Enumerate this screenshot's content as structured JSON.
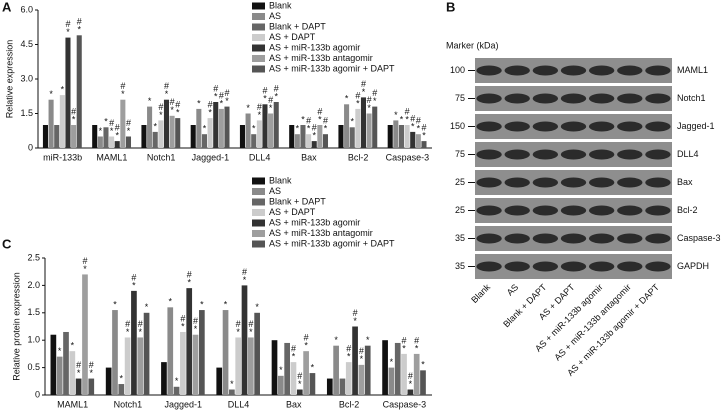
{
  "chart_data": [
    {
      "type": "bar",
      "panel_label": "A",
      "y_label": "Relative expression",
      "categories": [
        "miR-133b",
        "MAML1",
        "Notch1",
        "Jagged-1",
        "DLL4",
        "Bax",
        "Bcl-2",
        "Caspase-3"
      ],
      "ylim": [
        0,
        6
      ],
      "yticks": [
        0,
        1.5,
        {
          "value": 3,
          "label": "3.0"
        },
        4.5,
        {
          "value": 6,
          "label": "6.0"
        }
      ],
      "series": [
        {
          "name": "Blank",
          "color": "#111111",
          "values": [
            1.0,
            1.0,
            1.0,
            1.0,
            1.0,
            1.0,
            1.0,
            1.0
          ],
          "sig": [
            null,
            null,
            null,
            null,
            null,
            null,
            null,
            null
          ]
        },
        {
          "name": "AS",
          "color": "#8a8a8a",
          "values": [
            2.1,
            0.5,
            1.8,
            1.7,
            1.5,
            0.6,
            1.9,
            1.2
          ],
          "sig": [
            [
              "*"
            ],
            [
              "*"
            ],
            [
              "*"
            ],
            [
              "*"
            ],
            [
              "*"
            ],
            [
              "*"
            ],
            [
              "*"
            ],
            [
              "*"
            ]
          ]
        },
        {
          "name": "Blank + DAPT",
          "color": "#666666",
          "values": [
            1.0,
            0.9,
            0.7,
            0.6,
            0.6,
            1.0,
            0.9,
            1.0
          ],
          "sig": [
            null,
            [
              "*"
            ],
            [
              "*"
            ],
            [
              "*"
            ],
            [
              "*"
            ],
            [
              "*"
            ],
            [
              "*"
            ],
            [
              "*"
            ]
          ]
        },
        {
          "name": "AS + DAPT",
          "color": "#cccccc",
          "values": [
            2.3,
            0.5,
            1.2,
            1.3,
            1.2,
            0.6,
            1.7,
            1.0
          ],
          "sig": [
            [
              "*"
            ],
            [
              "#",
              "*"
            ],
            [
              "#",
              "*"
            ],
            [
              "#",
              "*"
            ],
            [
              "#",
              "*"
            ],
            [
              "#",
              "*"
            ],
            [
              "#",
              "*"
            ],
            [
              "#",
              "*"
            ]
          ]
        },
        {
          "name": "AS + miR-133b agomir",
          "color": "#333333",
          "values": [
            4.8,
            0.3,
            2.1,
            2.0,
            1.9,
            0.3,
            2.2,
            0.7
          ],
          "sig": [
            [
              "#",
              "*"
            ],
            [
              "#",
              "*"
            ],
            [
              "#",
              "*"
            ],
            [
              "#",
              "*"
            ],
            [
              "#",
              "*"
            ],
            [
              "#",
              "*"
            ],
            [
              "#",
              "*"
            ],
            [
              "#",
              "*"
            ]
          ]
        },
        {
          "name": "AS + miR-133b antagomir",
          "color": "#9e9e9e",
          "values": [
            1.0,
            2.1,
            1.4,
            1.7,
            1.5,
            1.0,
            1.5,
            0.6
          ],
          "sig": [
            [
              "#",
              "*"
            ],
            [
              "#",
              "*"
            ],
            [
              "#",
              "*"
            ],
            [
              "#",
              "*"
            ],
            [
              "#",
              "*"
            ],
            [
              "#",
              "*"
            ],
            [
              "#",
              "*"
            ],
            [
              "#",
              "*"
            ]
          ]
        },
        {
          "name": "AS + miR-133b agomir + DAPT",
          "color": "#555555",
          "values": [
            4.9,
            0.5,
            1.3,
            1.8,
            2.0,
            0.6,
            1.8,
            0.3
          ],
          "sig": [
            [
              "#",
              "*"
            ],
            [
              "#",
              "*"
            ],
            [
              "#",
              "*"
            ],
            [
              "#",
              "*"
            ],
            [
              "#",
              "*"
            ],
            [
              "#",
              "*"
            ],
            [
              "#",
              "*"
            ],
            [
              "#",
              "*"
            ]
          ]
        }
      ]
    },
    {
      "type": "bar",
      "panel_label": "C",
      "y_label": "Relative protein expression",
      "categories": [
        "MAML1",
        "Notch1",
        "Jagged-1",
        "DLL4",
        "Bax",
        "Bcl-2",
        "Caspase-3"
      ],
      "ylim": [
        0,
        2.5
      ],
      "yticks": [
        0,
        0.5,
        {
          "value": 1,
          "label": "1.0"
        },
        1.5,
        {
          "value": 2,
          "label": "2.0"
        },
        2.5
      ],
      "series": [
        {
          "name": "Blank",
          "color": "#111111",
          "values": [
            1.1,
            0.5,
            0.6,
            0.5,
            1.0,
            0.3,
            1.0
          ],
          "sig": [
            null,
            null,
            null,
            null,
            null,
            null,
            null
          ]
        },
        {
          "name": "AS",
          "color": "#8a8a8a",
          "values": [
            0.7,
            1.55,
            1.6,
            1.55,
            0.35,
            0.9,
            0.5
          ],
          "sig": [
            [
              "*"
            ],
            [
              "*"
            ],
            [
              "*"
            ],
            [
              "*"
            ],
            [
              "*"
            ],
            [
              "*"
            ],
            [
              "*"
            ]
          ]
        },
        {
          "name": "Blank + DAPT",
          "color": "#666666",
          "values": [
            1.15,
            0.2,
            0.15,
            0.1,
            0.95,
            0.3,
            0.95
          ],
          "sig": [
            null,
            [
              "*"
            ],
            [
              "*"
            ],
            [
              "*"
            ],
            null,
            null,
            null
          ]
        },
        {
          "name": "AS + DAPT",
          "color": "#cccccc",
          "values": [
            0.8,
            1.05,
            1.15,
            1.05,
            0.6,
            0.6,
            0.75
          ],
          "sig": [
            [
              "*"
            ],
            [
              "#",
              "*"
            ],
            [
              "#",
              "*"
            ],
            [
              "#",
              "*"
            ],
            [
              "#",
              "*"
            ],
            [
              "#",
              "*"
            ],
            [
              "#",
              "*"
            ]
          ]
        },
        {
          "name": "AS + miR-133b agomir",
          "color": "#333333",
          "values": [
            0.3,
            1.9,
            1.95,
            2.0,
            0.1,
            1.25,
            0.1
          ],
          "sig": [
            [
              "#",
              "*"
            ],
            [
              "#",
              "*"
            ],
            [
              "#",
              "*"
            ],
            [
              "#",
              "*"
            ],
            [
              "#",
              "*"
            ],
            [
              "#",
              "*"
            ],
            [
              "#",
              "*"
            ]
          ]
        },
        {
          "name": "AS + miR-133b antagomir",
          "color": "#9e9e9e",
          "values": [
            2.2,
            1.05,
            1.1,
            1.05,
            0.8,
            0.55,
            0.75
          ],
          "sig": [
            [
              "#",
              "*"
            ],
            [
              "#",
              "*"
            ],
            [
              "#",
              "*"
            ],
            [
              "#",
              "*"
            ],
            [
              "#",
              "*"
            ],
            [
              "#",
              "*"
            ],
            [
              "#",
              "*"
            ]
          ]
        },
        {
          "name": "AS + miR-133b agomir + DAPT",
          "color": "#555555",
          "values": [
            0.3,
            1.5,
            1.55,
            1.5,
            0.4,
            0.9,
            0.45
          ],
          "sig": [
            [
              "#",
              "*"
            ],
            [
              "*"
            ],
            [
              "*"
            ],
            [
              "*"
            ],
            [
              "*"
            ],
            [
              "*"
            ],
            [
              "*"
            ]
          ]
        }
      ]
    }
  ],
  "blot": {
    "panel_label": "B",
    "marker_label": "Marker (kDa)",
    "rows": [
      {
        "marker": "100",
        "protein": "MAML1"
      },
      {
        "marker": "75",
        "protein": "Notch1"
      },
      {
        "marker": "150",
        "protein": "Jagged-1"
      },
      {
        "marker": "75",
        "protein": "DLL4"
      },
      {
        "marker": "25",
        "protein": "Bax"
      },
      {
        "marker": "25",
        "protein": "Bcl-2"
      },
      {
        "marker": "35",
        "protein": "Caspase-3"
      },
      {
        "marker": "35",
        "protein": "GAPDH"
      }
    ],
    "lanes": [
      "Blank",
      "AS",
      "Blank + DAPT",
      "AS + DAPT",
      "AS + miR-133b agomir",
      "AS + miR-133b antagomir",
      "AS + miR-133b agomir + DAPT"
    ]
  }
}
